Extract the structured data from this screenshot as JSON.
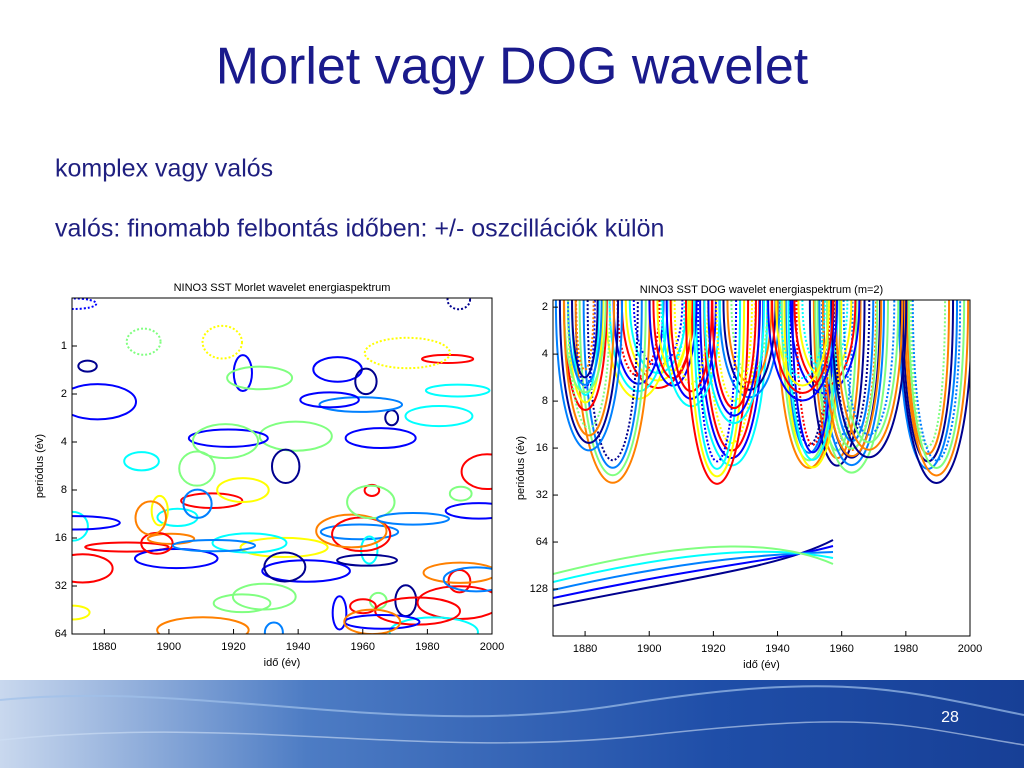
{
  "title": "Morlet vagy DOG wavelet",
  "bullets": [
    "komplex vagy valós",
    "valós: finomabb felbontás időben: +/- oszcillációk külön"
  ],
  "page_number": "28",
  "chart_data": [
    {
      "type": "contour",
      "title": "NINO3 SST Morlet wavelet energiaspektrum",
      "x_label": "idő (év)",
      "y_label": "periódus (év)",
      "xlim": [
        1870,
        2000
      ],
      "xticks": [
        1880,
        1900,
        1920,
        1940,
        1960,
        1980,
        2000
      ],
      "ylim": [
        0.5,
        64
      ],
      "yticks": [
        1,
        2,
        4,
        8,
        16,
        32,
        64
      ],
      "ylog": true,
      "yreverse": true
    },
    {
      "type": "contour",
      "title": "NINO3 SST DOG wavelet energiaspektrum (m=2)",
      "x_label": "idő (év)",
      "y_label": "periódus (év)",
      "xlim": [
        1870,
        2000
      ],
      "xticks": [
        1880,
        1900,
        1920,
        1940,
        1960,
        1980,
        2000
      ],
      "ylim": [
        1.8,
        256
      ],
      "yticks": [
        2,
        4,
        8,
        16,
        32,
        64,
        128
      ],
      "ylog": true,
      "yreverse": true
    }
  ]
}
